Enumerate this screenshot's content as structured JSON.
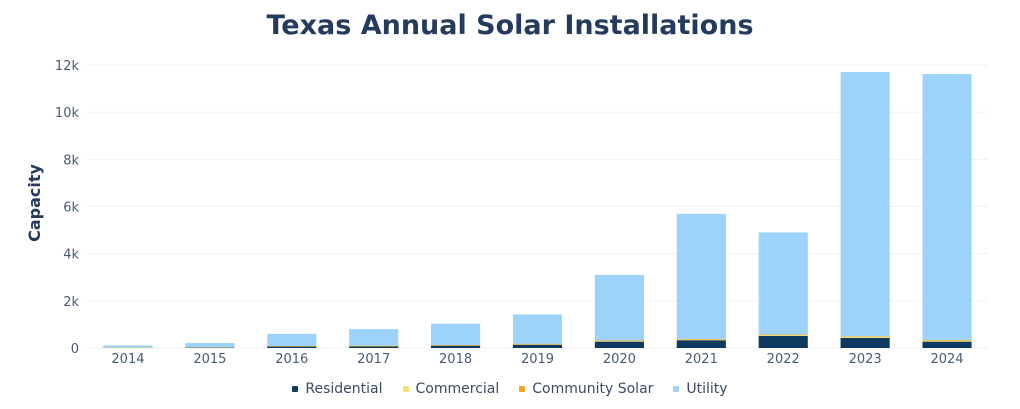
{
  "chart_data": {
    "type": "bar",
    "stacked": true,
    "title": "Texas Annual Solar Installations",
    "ylabel": "Capacity",
    "xlabel": "",
    "ylim": [
      0,
      12000
    ],
    "yticks": [
      0,
      2000,
      4000,
      6000,
      8000,
      10000,
      12000
    ],
    "ytick_labels": [
      "0",
      "2k",
      "4k",
      "6k",
      "8k",
      "10k",
      "12k"
    ],
    "grid": true,
    "legend_position": "bottom",
    "categories": [
      "2014",
      "2015",
      "2016",
      "2017",
      "2018",
      "2019",
      "2020",
      "2021",
      "2022",
      "2023",
      "2024"
    ],
    "series": [
      {
        "name": "Residential",
        "color": "#0f3a5f",
        "values": [
          20,
          30,
          70,
          80,
          100,
          140,
          270,
          330,
          510,
          430,
          270
        ]
      },
      {
        "name": "Commercial",
        "color": "#f5e17a",
        "values": [
          5,
          5,
          10,
          10,
          20,
          30,
          40,
          40,
          50,
          60,
          60
        ]
      },
      {
        "name": "Community Solar",
        "color": "#f5a623",
        "values": [
          0,
          0,
          5,
          5,
          10,
          10,
          10,
          10,
          10,
          10,
          10
        ]
      },
      {
        "name": "Utility",
        "color": "#9dd3fb",
        "values": [
          85,
          175,
          515,
          705,
          900,
          1240,
          2780,
          5310,
          4330,
          11200,
          11280
        ]
      }
    ]
  }
}
